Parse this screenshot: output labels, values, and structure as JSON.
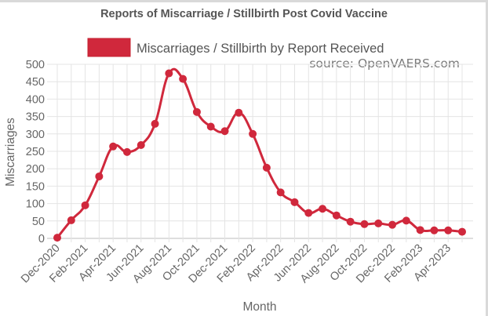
{
  "chart_data": {
    "type": "line",
    "title": "Reports of Miscarriage / Stillbirth Post Covid Vaccine",
    "source": "source: OpenVAERS.com",
    "xlabel": "Month",
    "ylabel": "Miscarriages",
    "ylim": [
      0,
      500
    ],
    "yticks": [
      0,
      50,
      100,
      150,
      200,
      250,
      300,
      350,
      400,
      450,
      500
    ],
    "grid": true,
    "legend_position": "top",
    "x": [
      "Dec-2020",
      "Jan-2021",
      "Feb-2021",
      "Mar-2021",
      "Apr-2021",
      "May-2021",
      "Jun-2021",
      "Jul-2021",
      "Aug-2021",
      "Sep-2021",
      "Oct-2021",
      "Nov-2021",
      "Dec-2021",
      "Jan-2022",
      "Feb-2022",
      "Mar-2022",
      "Apr-2022",
      "May-2022",
      "Jun-2022",
      "Jul-2022",
      "Aug-2022",
      "Sep-2022",
      "Oct-2022",
      "Nov-2022",
      "Dec-2022",
      "Jan-2023",
      "Feb-2023",
      "Mar-2023",
      "Apr-2023",
      "May-2023"
    ],
    "x_tick_labels": [
      "Dec-2020",
      "",
      "Feb-2021",
      "",
      "Apr-2021",
      "",
      "Jun-2021",
      "",
      "Aug-2021",
      "",
      "Oct-2021",
      "",
      "Dec-2021",
      "",
      "Feb-2022",
      "",
      "Apr-2022",
      "",
      "Jun-2022",
      "",
      "Aug-2022",
      "",
      "Oct-2022",
      "",
      "Dec-2022",
      "",
      "Feb-2023",
      "",
      "Apr-2023",
      ""
    ],
    "series": [
      {
        "name": "Miscarriages / Stillbirth by Report Received",
        "color": "#d0283c",
        "values": [
          2,
          52,
          95,
          178,
          264,
          248,
          268,
          329,
          474,
          458,
          363,
          321,
          308,
          361,
          300,
          203,
          132,
          104,
          73,
          85,
          66,
          48,
          41,
          43,
          39,
          51,
          24,
          23,
          23,
          19
        ]
      }
    ]
  }
}
